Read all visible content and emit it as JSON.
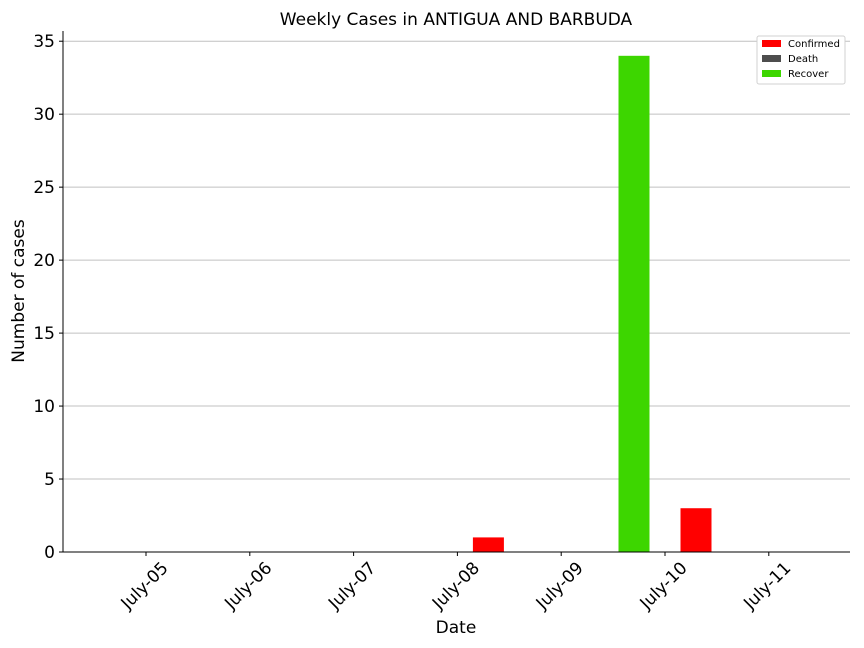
{
  "chart_data": {
    "type": "bar",
    "title": "Weekly Cases in ANTIGUA AND BARBUDA",
    "xlabel": "Date",
    "ylabel": "Number of cases",
    "categories": [
      "July-05",
      "July-06",
      "July-07",
      "July-08",
      "July-09",
      "July-10",
      "July-11"
    ],
    "series": [
      {
        "name": "Confirmed",
        "color": "#ff0000",
        "values": [
          0,
          0,
          0,
          1,
          0,
          3,
          0
        ]
      },
      {
        "name": "Death",
        "color": "#4d4d4d",
        "values": [
          0,
          0,
          0,
          0,
          0,
          0,
          0
        ]
      },
      {
        "name": "Recover",
        "color": "#3dd600",
        "values": [
          0,
          0,
          0,
          0,
          0,
          34,
          0
        ]
      }
    ],
    "ylim": [
      0,
      35.7
    ],
    "yticks": [
      "0",
      "5",
      "10",
      "15",
      "20",
      "25",
      "30",
      "35"
    ],
    "grid": "horizontal",
    "legend": "top-right"
  }
}
